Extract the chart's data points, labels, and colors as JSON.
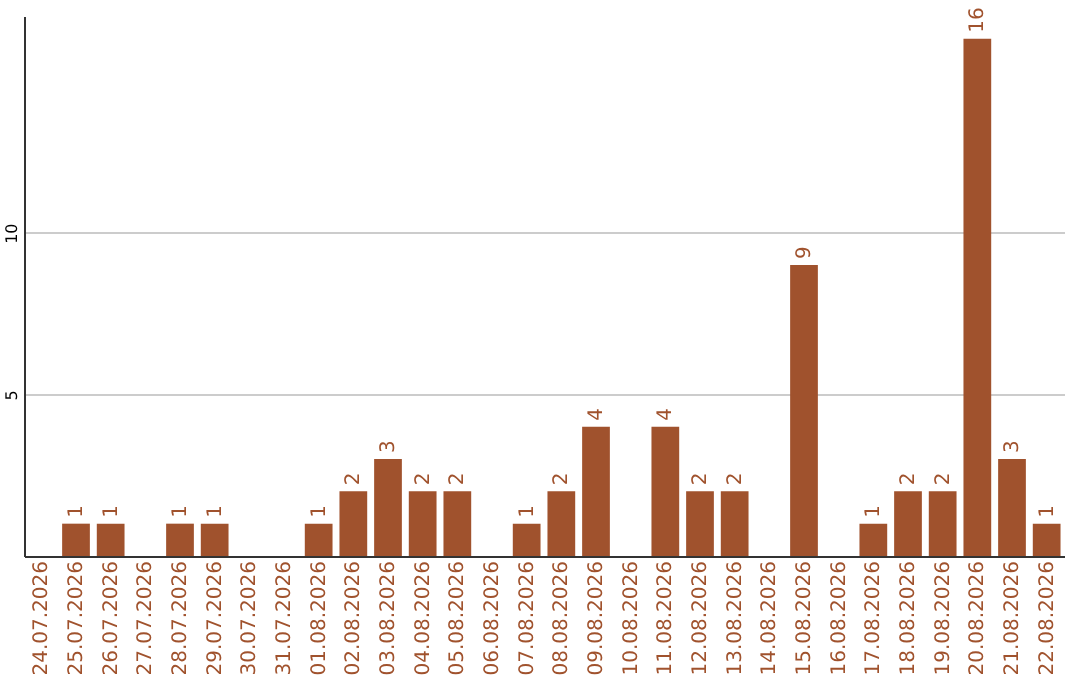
{
  "chart_data": {
    "type": "bar",
    "categories": [
      "24.07.2026",
      "25.07.2026",
      "26.07.2026",
      "27.07.2026",
      "28.07.2026",
      "29.07.2026",
      "30.07.2026",
      "31.07.2026",
      "01.08.2026",
      "02.08.2026",
      "03.08.2026",
      "04.08.2026",
      "05.08.2026",
      "06.08.2026",
      "07.08.2026",
      "08.08.2026",
      "09.08.2026",
      "10.08.2026",
      "11.08.2026",
      "12.08.2026",
      "13.08.2026",
      "14.08.2026",
      "15.08.2026",
      "16.08.2026",
      "17.08.2026",
      "18.08.2026",
      "19.08.2026",
      "20.08.2026",
      "21.08.2026",
      "22.08.2026"
    ],
    "values": [
      0,
      1,
      1,
      0,
      1,
      1,
      0,
      0,
      1,
      2,
      3,
      2,
      2,
      0,
      1,
      2,
      4,
      0,
      4,
      2,
      2,
      0,
      9,
      0,
      1,
      2,
      2,
      16,
      3,
      1
    ],
    "value_labels": [
      null,
      "1",
      "1",
      null,
      "1",
      "1",
      null,
      null,
      "1",
      "2",
      "3",
      "2",
      "2",
      null,
      "1",
      "2",
      "4",
      null,
      "4",
      "2",
      "2",
      null,
      "9",
      null,
      "1",
      "2",
      "2",
      "16",
      "3",
      "1"
    ],
    "color": "#a0522d",
    "ylim": [
      0,
      16.7
    ],
    "yticks": [
      5,
      10
    ],
    "grid": "y"
  }
}
